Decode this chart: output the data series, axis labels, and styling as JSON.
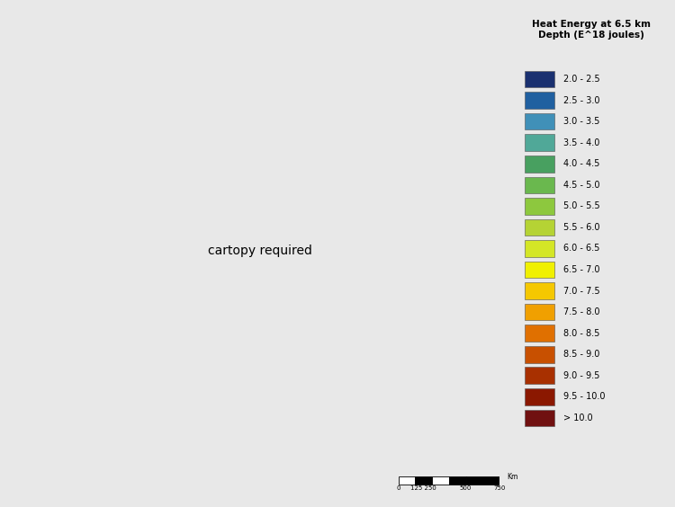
{
  "title": "Heat Energy at 6.5 km\nDepth (E^18 joules)",
  "legend_labels": [
    "2.0 - 2.5",
    "2.5 - 3.0",
    "3.0 - 3.5",
    "3.5 - 4.0",
    "4.0 - 4.5",
    "4.5 - 5.0",
    "5.0 - 5.5",
    "5.5 - 6.0",
    "6.0 - 6.5",
    "6.5 - 7.0",
    "7.0 - 7.5",
    "7.5 - 8.0",
    "8.0 - 8.5",
    "8.5 - 9.0",
    "9.0 - 9.5",
    "9.5 - 10.0",
    "> 10.0"
  ],
  "legend_colors": [
    "#1a3070",
    "#2060a0",
    "#4090b8",
    "#50a898",
    "#48a060",
    "#6ab84e",
    "#8dc83e",
    "#b5d334",
    "#d4e626",
    "#f0f000",
    "#f5c800",
    "#f0a000",
    "#e07000",
    "#c85000",
    "#a83000",
    "#8b1800",
    "#701010"
  ],
  "background_color": "#e8e8e8",
  "map_background": "#ffffff",
  "fig_width": 7.5,
  "fig_height": 5.64,
  "dpi": 100,
  "bounds": [
    2.0,
    2.5,
    3.0,
    3.5,
    4.0,
    4.5,
    5.0,
    5.5,
    6.0,
    6.5,
    7.0,
    7.5,
    8.0,
    8.5,
    9.0,
    9.5,
    10.0,
    12.0
  ]
}
